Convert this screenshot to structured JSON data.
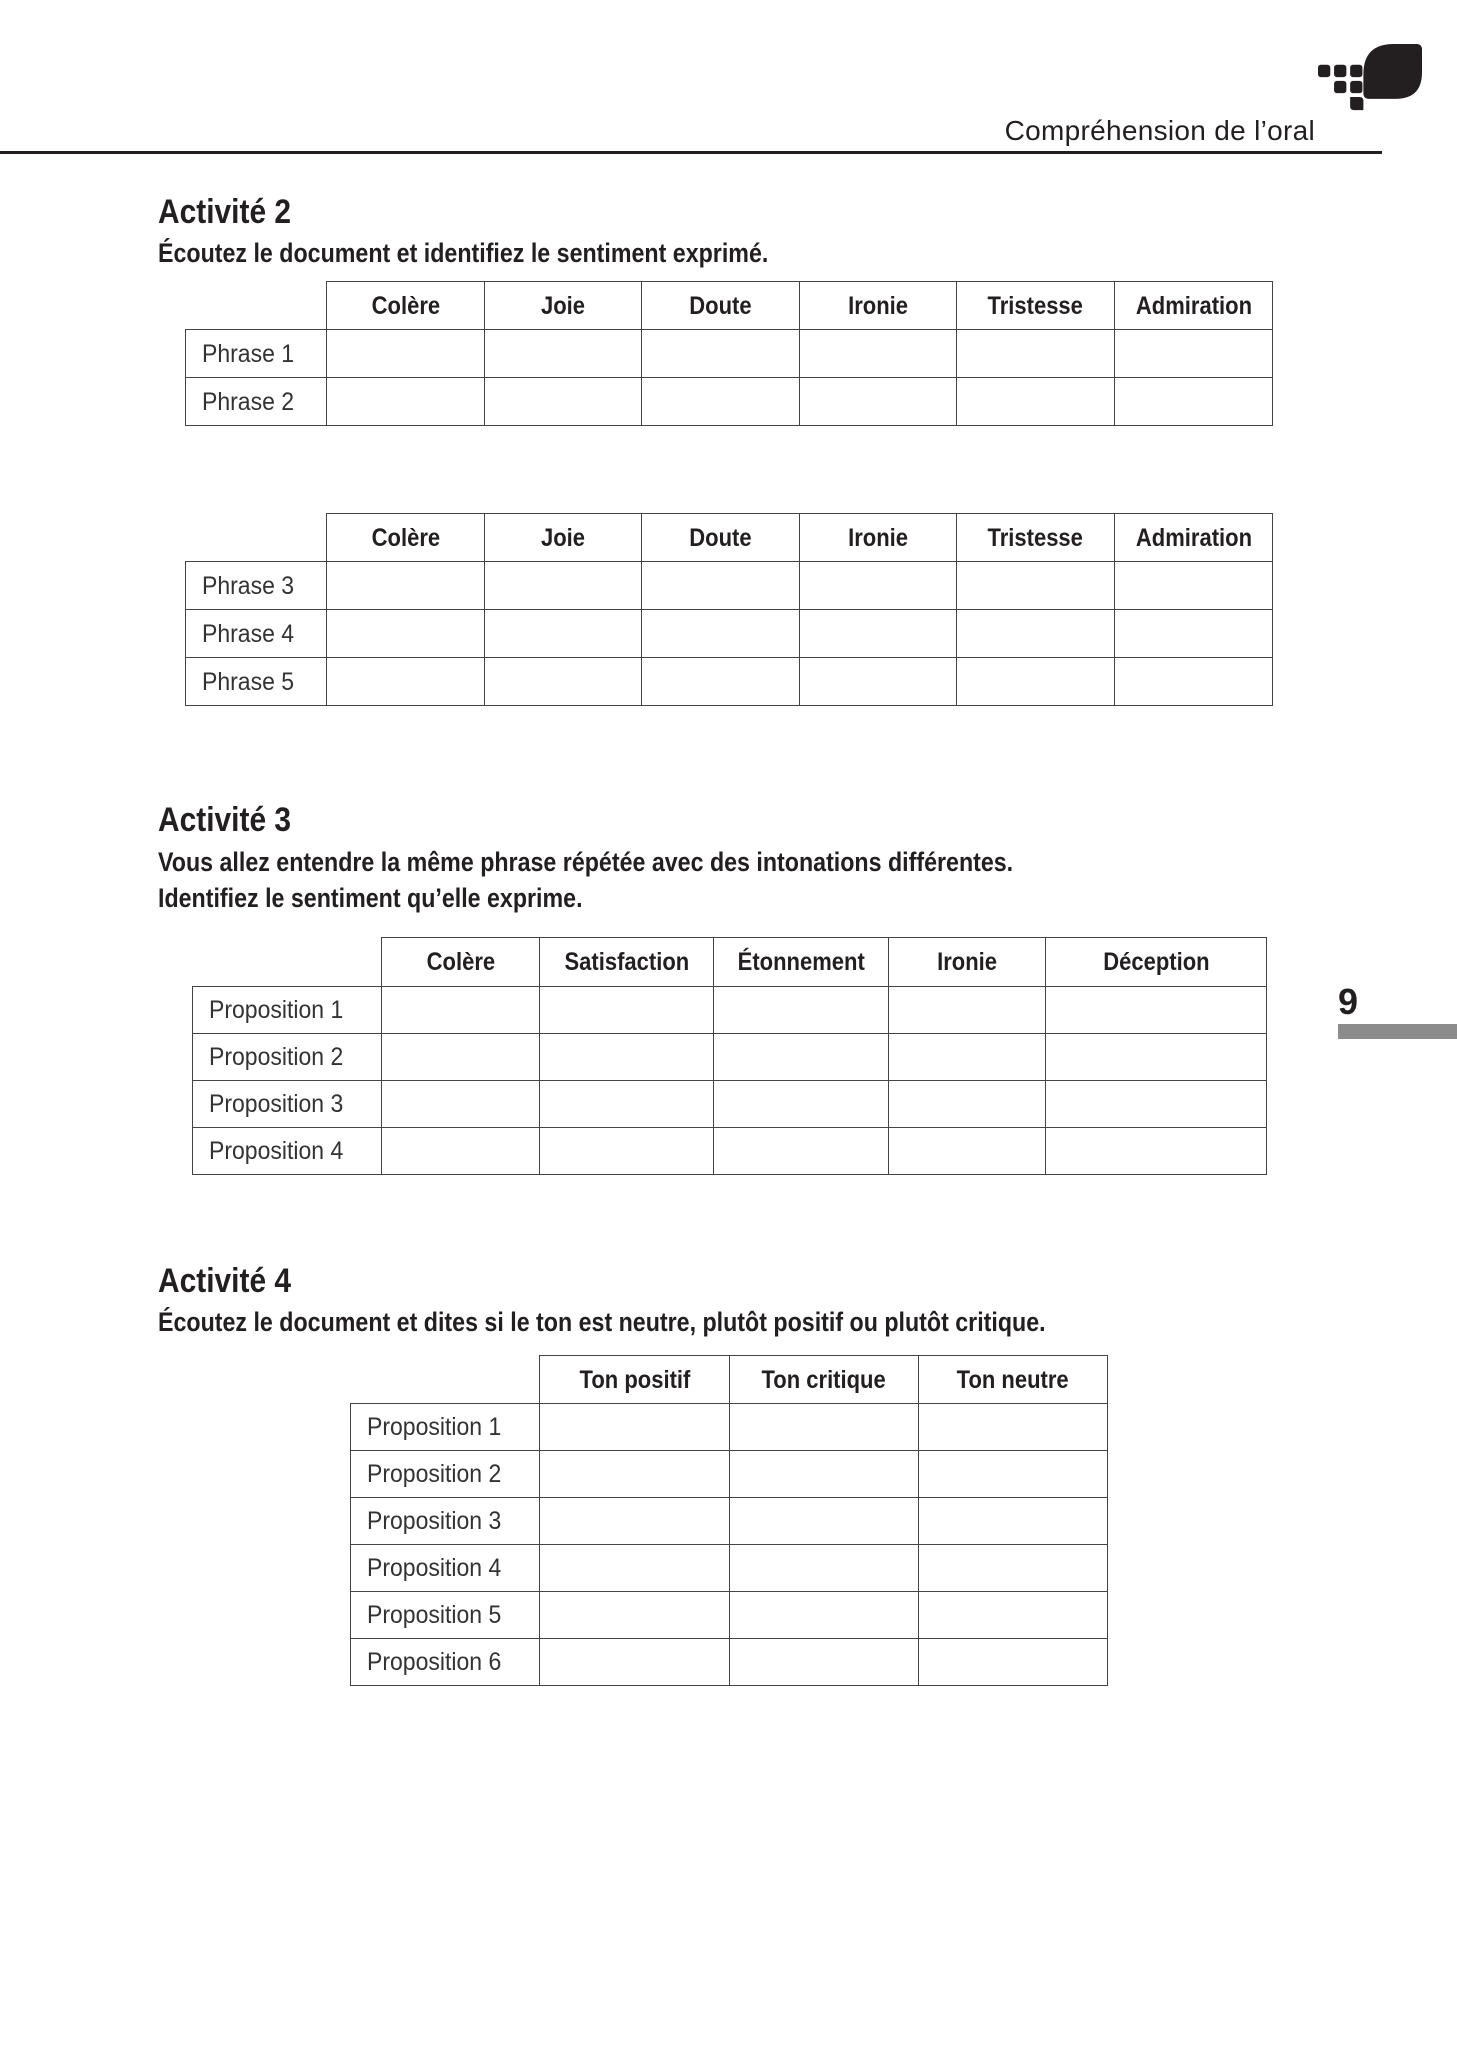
{
  "header": {
    "section_title": "Compréhension de l’oral",
    "page_number": "9"
  },
  "activities": [
    {
      "title": "Activité 2",
      "instructions": [
        "Écoutez le document et identifiez le sentiment exprimé."
      ],
      "tables": [
        {
          "columns": [
            "Colère",
            "Joie",
            "Doute",
            "Ironie",
            "Tristesse",
            "Admiration"
          ],
          "rows": [
            "Phrase 1",
            "Phrase 2"
          ]
        },
        {
          "columns": [
            "Colère",
            "Joie",
            "Doute",
            "Ironie",
            "Tristesse",
            "Admiration"
          ],
          "rows": [
            "Phrase 3",
            "Phrase 4",
            "Phrase 5"
          ]
        }
      ]
    },
    {
      "title": "Activité 3",
      "instructions": [
        "Vous allez entendre la même phrase répétée avec des intonations différentes.",
        "Identifiez le sentiment qu’elle exprime."
      ],
      "tables": [
        {
          "columns": [
            "Colère",
            "Satisfaction",
            "Étonnement",
            "Ironie",
            "Déception"
          ],
          "rows": [
            "Proposition 1",
            "Proposition 2",
            "Proposition 3",
            "Proposition 4"
          ]
        }
      ]
    },
    {
      "title": "Activité 4",
      "instructions": [
        "Écoutez le document et dites si le ton est neutre, plutôt positif ou plutôt critique."
      ],
      "tables": [
        {
          "columns": [
            "Ton positif",
            "Ton critique",
            "Ton neutre"
          ],
          "rows": [
            "Proposition 1",
            "Proposition 2",
            "Proposition 3",
            "Proposition 4",
            "Proposition 5",
            "Proposition 6"
          ]
        }
      ]
    }
  ]
}
